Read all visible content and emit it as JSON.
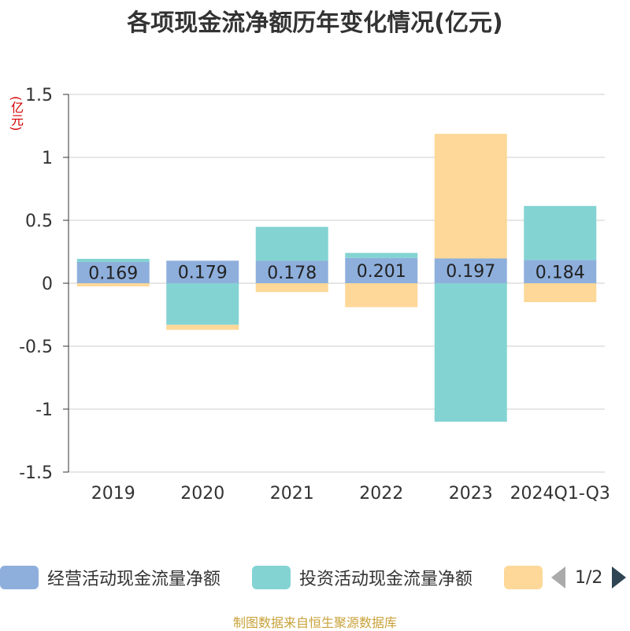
{
  "title": "各项现金流净额历年变化情况(亿元)",
  "unit_label": "(亿元)",
  "source": "制图数据来自恒生聚源数据库",
  "legend_pager": {
    "text": "1/2"
  },
  "chart_data": {
    "type": "bar",
    "stacked": true,
    "categories": [
      "2019",
      "2020",
      "2021",
      "2022",
      "2023",
      "2024Q1-Q3"
    ],
    "ylim": [
      -1.5,
      1.5
    ],
    "yticks": [
      -1.5,
      -1,
      -0.5,
      0,
      0.5,
      1,
      1.5
    ],
    "ytick_labels": [
      "-1.5",
      "-1",
      "-0.5",
      "0",
      "0.5",
      "1",
      "1.5"
    ],
    "grid": true,
    "legend_position": "bottom",
    "series": [
      {
        "name": "经营活动现金流量净额",
        "color": "#8eafdc",
        "values": [
          0.169,
          0.179,
          0.178,
          0.201,
          0.197,
          0.184
        ],
        "labels": [
          "0.169",
          "0.179",
          "0.178",
          "0.201",
          "0.197",
          "0.184"
        ]
      },
      {
        "name": "投资活动现金流量净额",
        "color": "#84d3d3",
        "values": [
          0.025,
          -0.33,
          0.27,
          0.04,
          -1.1,
          0.43
        ]
      },
      {
        "name": "",
        "color": "#fdd898",
        "values": [
          -0.025,
          -0.04,
          -0.07,
          -0.19,
          0.99,
          -0.15
        ]
      }
    ]
  }
}
